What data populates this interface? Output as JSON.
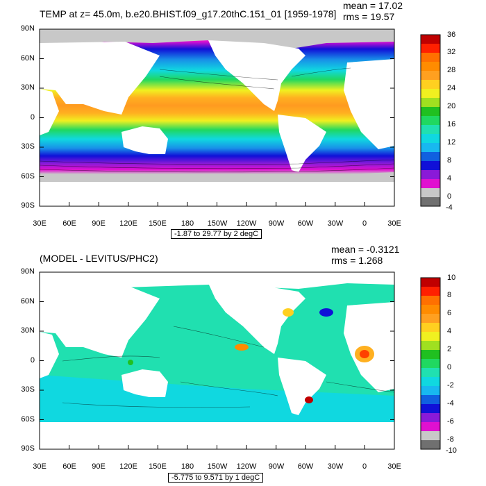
{
  "colors": {
    "land": "#c8c8c8",
    "scale": [
      "#707070",
      "#c8c8c8",
      "#e010d0",
      "#8a1ad8",
      "#1010d8",
      "#1060e0",
      "#1890e8",
      "#18b8f0",
      "#10d8e0",
      "#20e0b0",
      "#20d860",
      "#20c020",
      "#a0e020",
      "#f0f020",
      "#ffd020",
      "#ffb020",
      "#ff8c00",
      "#ff7000",
      "#ff4000",
      "#e81010",
      "#c00000"
    ]
  },
  "panels": [
    {
      "title": "TEMP at z=  45.0m, b.e20.BHIST.f09_g17.20thC.151_01 [1959-1978]",
      "mean": "mean = 17.02",
      "rms": "rms = 19.57",
      "range": "-1.87 to 29.77 by 2 degC",
      "colorbar_labels": [
        "36",
        "32",
        "28",
        "24",
        "20",
        "16",
        "12",
        "8",
        "4",
        "0",
        "-4"
      ]
    },
    {
      "title": "(MODEL - LEVITUS/PHC2)",
      "mean": "mean = -0.3121",
      "rms": "rms = 1.268",
      "range": "-5.775 to 9.571 by 1 degC",
      "colorbar_labels": [
        "10",
        "8",
        "6",
        "4",
        "2",
        "0",
        "-2",
        "-4",
        "-6",
        "-8",
        "-10"
      ]
    }
  ],
  "lat_labels": [
    "90N",
    "60N",
    "30N",
    "0",
    "30S",
    "60S",
    "90S"
  ],
  "lon_labels": [
    "30E",
    "60E",
    "90E",
    "120E",
    "150E",
    "180",
    "150W",
    "120W",
    "90W",
    "60W",
    "30W",
    "0",
    "30E"
  ]
}
